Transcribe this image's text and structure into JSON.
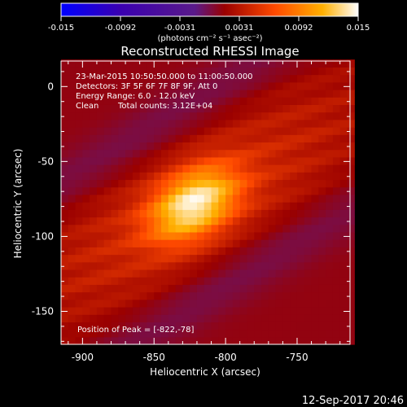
{
  "chart_data": {
    "type": "heatmap",
    "title": "Reconstructed RHESSI Image",
    "xlabel": "Heliocentric X (arcsec)",
    "ylabel": "Heliocentric Y (arcsec)",
    "xlim": [
      -915,
      -713
    ],
    "ylim": [
      -172,
      17
    ],
    "x_ticks": [
      -900,
      -850,
      -800,
      -750
    ],
    "y_ticks": [
      0,
      -50,
      -100,
      -150
    ],
    "colorbar": {
      "range": [
        -0.015,
        0.015
      ],
      "ticks": [
        "-0.015",
        "-0.0092",
        "-0.0031",
        "0.0031",
        "0.0092",
        "0.015"
      ],
      "label": "(photons cm⁻² s⁻¹ asec⁻²)",
      "colors": [
        "#0000ff",
        "#3a00b0",
        "#5a1a8a",
        "#9a0000",
        "#ff4a00",
        "#ffb000",
        "#ffffff"
      ]
    },
    "source": {
      "peak_x": -822,
      "peak_y": -78,
      "peak_value": 0.015,
      "angle_deg": 30
    },
    "annotations": {
      "time_range": "23-Mar-2015 10:50:50.000 to 11:00:50.000",
      "detectors": "Detectors: 3F 5F 6F 7F 8F 9F, Att 0",
      "energy": "Energy Range: 6.0 - 12.0 keV",
      "clean": "Clean",
      "total_counts": "Total counts: 3.12E+04",
      "peak_position": "Position of Peak = [-822,-78]"
    },
    "footer_date": "12-Sep-2017 20:46"
  }
}
